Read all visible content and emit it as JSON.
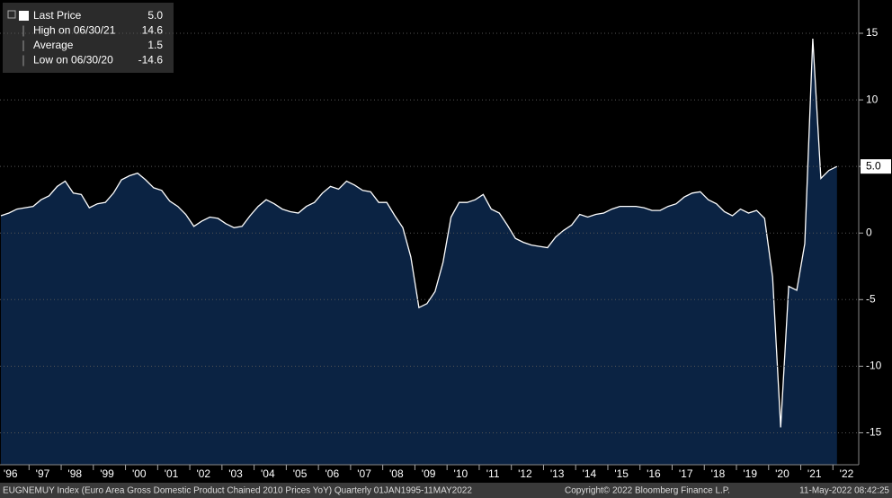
{
  "chart_data": {
    "type": "area",
    "categories": [
      "'96",
      null,
      null,
      null,
      "'97",
      null,
      null,
      null,
      "'98",
      null,
      null,
      null,
      "'99",
      null,
      null,
      null,
      "'00",
      null,
      null,
      null,
      "'01",
      null,
      null,
      null,
      "'02",
      null,
      null,
      null,
      "'03",
      null,
      null,
      null,
      "'04",
      null,
      null,
      null,
      "'05",
      null,
      null,
      null,
      "'06",
      null,
      null,
      null,
      "'07",
      null,
      null,
      null,
      "'08",
      null,
      null,
      null,
      "'09",
      null,
      null,
      null,
      "'10",
      null,
      null,
      null,
      "'11",
      null,
      null,
      null,
      "'12",
      null,
      null,
      null,
      "'13",
      null,
      null,
      null,
      "'14",
      null,
      null,
      null,
      "'15",
      null,
      null,
      null,
      "'16",
      null,
      null,
      null,
      "'17",
      null,
      null,
      null,
      "'18",
      null,
      null,
      null,
      "'19",
      null,
      null,
      null,
      "'20",
      null,
      null,
      null,
      "'21",
      null,
      null,
      null,
      "'22"
    ],
    "values": [
      1.3,
      1.5,
      1.8,
      1.9,
      2.0,
      2.5,
      2.8,
      3.5,
      3.9,
      3.0,
      2.9,
      1.9,
      2.2,
      2.3,
      3.0,
      4.0,
      4.3,
      4.5,
      4.0,
      3.4,
      3.2,
      2.4,
      2.0,
      1.4,
      0.5,
      0.9,
      1.2,
      1.1,
      0.7,
      0.4,
      0.5,
      1.3,
      2.0,
      2.5,
      2.2,
      1.8,
      1.6,
      1.5,
      2.0,
      2.3,
      3.0,
      3.5,
      3.3,
      3.9,
      3.6,
      3.2,
      3.1,
      2.3,
      2.3,
      1.3,
      0.4,
      -1.8,
      -5.6,
      -5.3,
      -4.4,
      -2.2,
      1.2,
      2.3,
      2.3,
      2.5,
      2.9,
      1.8,
      1.5,
      0.6,
      -0.4,
      -0.7,
      -0.9,
      -1.0,
      -1.1,
      -0.3,
      0.2,
      0.6,
      1.4,
      1.2,
      1.4,
      1.5,
      1.8,
      2.0,
      2.0,
      2.0,
      1.9,
      1.7,
      1.7,
      2.0,
      2.2,
      2.7,
      3.0,
      3.1,
      2.5,
      2.2,
      1.6,
      1.3,
      1.8,
      1.5,
      1.7,
      1.1,
      -3.3,
      -14.6,
      -4.0,
      -4.3,
      -0.8,
      14.6,
      4.1,
      4.7,
      5.0
    ],
    "color": "#0b2343",
    "line_color": "#ffffff",
    "ylim": [
      -17.4,
      17.5
    ],
    "yticks": [
      -15,
      -10,
      -5,
      0,
      5,
      10,
      15
    ],
    "grid": true,
    "legend": [
      {
        "label": "Last Price",
        "value": "5.0"
      },
      {
        "label": "High on 06/30/21",
        "value": "14.6"
      },
      {
        "label": "Average",
        "value": "1.5"
      },
      {
        "label": "Low on 06/30/20",
        "value": "-14.6"
      }
    ],
    "footer": {
      "description": "EUGNEMUY Index (Euro Area Gross Domestic Product Chained 2010 Prices YoY)  Quarterly 01JAN1995-11MAY2022",
      "copyright": "Copyright© 2022 Bloomberg Finance L.P.",
      "timestamp": "11-May-2022 08:42:25"
    }
  }
}
